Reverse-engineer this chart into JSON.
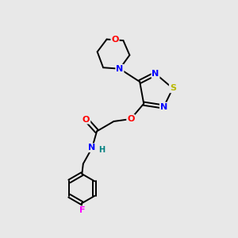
{
  "background_color": "#e8e8e8",
  "bond_color": "#000000",
  "atom_colors": {
    "N": "#0000ff",
    "O": "#ff0000",
    "S": "#b8b800",
    "F": "#ff00ff",
    "H": "#008080",
    "C": "#000000"
  },
  "figsize": [
    3.0,
    3.0
  ],
  "dpi": 100,
  "lw": 1.4,
  "fs": 8
}
